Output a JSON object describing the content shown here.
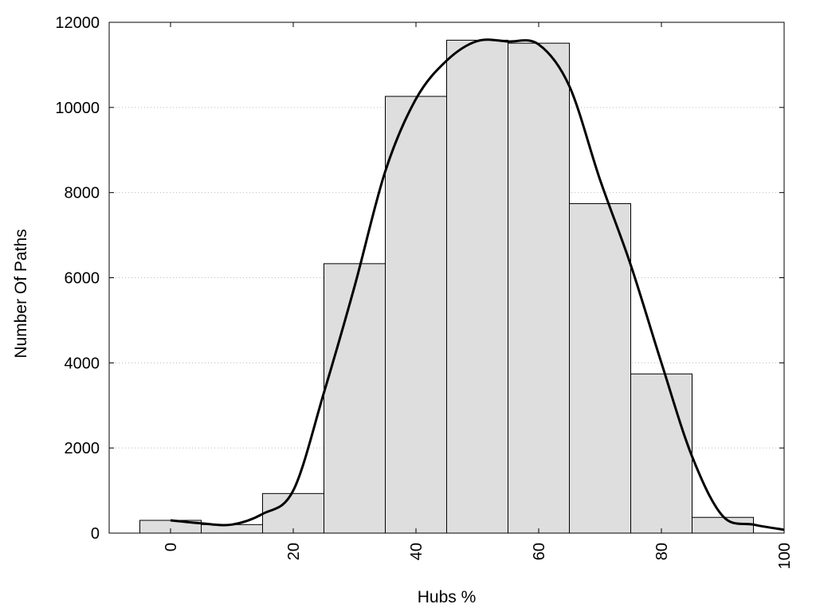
{
  "chart_data": {
    "type": "bar",
    "title": "",
    "xlabel": "Hubs %",
    "ylabel": "Number Of Paths",
    "xlim": [
      -10,
      100
    ],
    "ylim": [
      0,
      12000
    ],
    "x_ticks": [
      0,
      20,
      40,
      60,
      80,
      100
    ],
    "y_ticks": [
      0,
      2000,
      4000,
      6000,
      8000,
      10000,
      12000
    ],
    "grid": "horizontal-dotted",
    "bar_width": 10,
    "bars": [
      {
        "x": 0,
        "value": 300
      },
      {
        "x": 10,
        "value": 200
      },
      {
        "x": 20,
        "value": 930
      },
      {
        "x": 30,
        "value": 6330
      },
      {
        "x": 40,
        "value": 10260
      },
      {
        "x": 50,
        "value": 11580
      },
      {
        "x": 60,
        "value": 11510
      },
      {
        "x": 70,
        "value": 7740
      },
      {
        "x": 80,
        "value": 3740
      },
      {
        "x": 90,
        "value": 370
      }
    ],
    "curve": {
      "x": [
        0,
        5,
        10,
        15,
        20,
        25,
        30,
        35,
        40,
        45,
        50,
        55,
        60,
        65,
        70,
        75,
        80,
        85,
        90,
        95,
        100
      ],
      "y": [
        300,
        230,
        200,
        450,
        1000,
        3300,
        5800,
        8500,
        10200,
        11100,
        11560,
        11550,
        11480,
        10500,
        8300,
        6300,
        4000,
        1800,
        400,
        200,
        80
      ]
    },
    "colors": {
      "bar_fill": "#dedede",
      "bar_stroke": "#000000",
      "curve": "#000000",
      "grid": "#bbbbbb"
    }
  }
}
